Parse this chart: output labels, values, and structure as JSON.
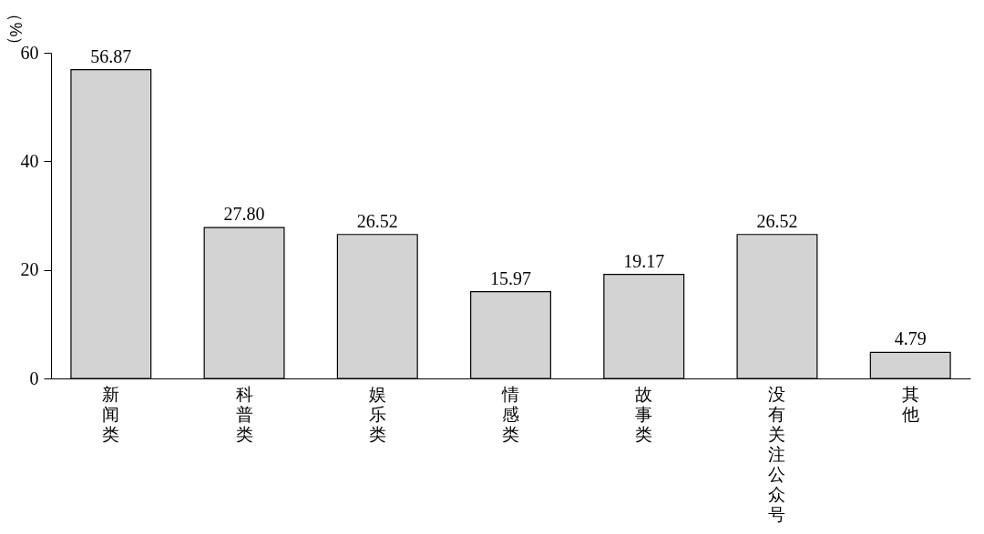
{
  "chart_data": {
    "type": "bar",
    "ylabel": "（%）",
    "categories": [
      "新闻类",
      "科普类",
      "娱乐类",
      "情感类",
      "故事类",
      "没有关注公众号",
      "其他"
    ],
    "values": [
      56.87,
      27.8,
      26.52,
      15.97,
      19.17,
      26.52,
      4.79
    ],
    "value_labels": [
      "56.87",
      "27.80",
      "26.52",
      "15.97",
      "19.17",
      "26.52",
      "4.79"
    ],
    "color": "#d3d3d3",
    "ylim": [
      0,
      60
    ],
    "yticks": [
      0,
      20,
      40,
      60
    ],
    "grid": false
  }
}
